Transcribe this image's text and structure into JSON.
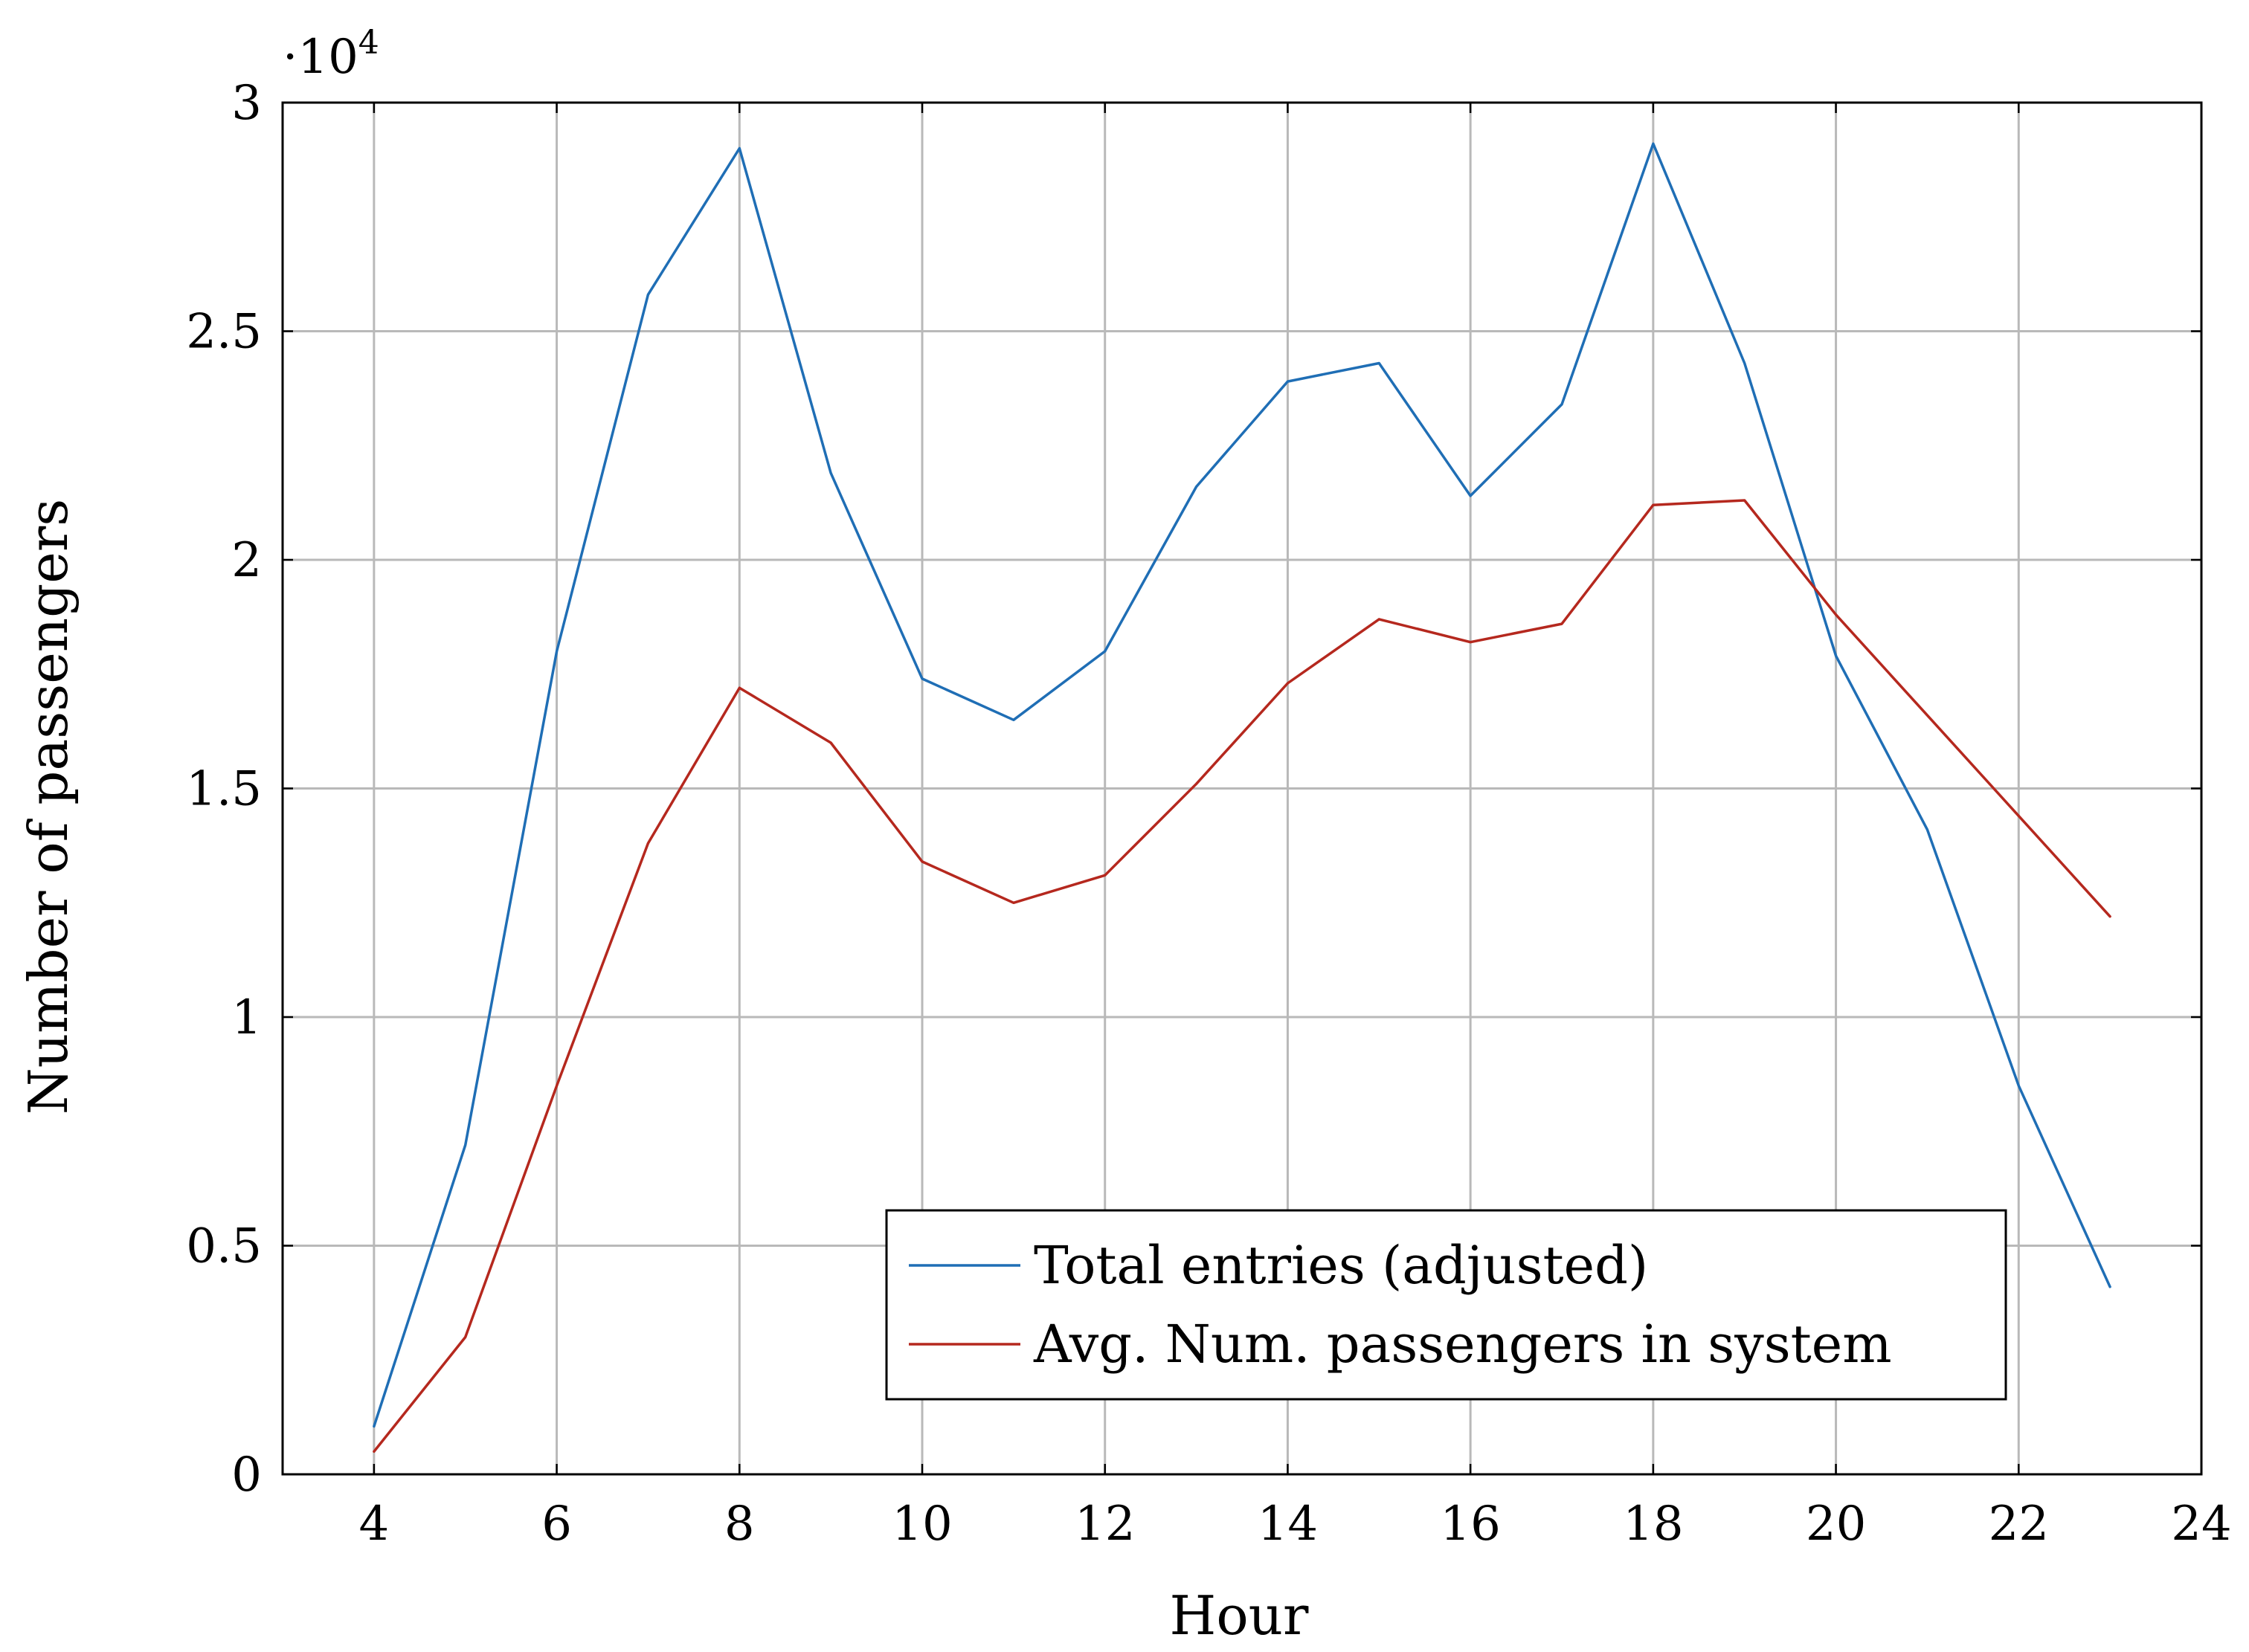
{
  "chart_data": {
    "type": "line",
    "title": "",
    "xlabel": "Hour",
    "ylabel": "Number of passengers",
    "y_multiplier_label": "·10",
    "y_multiplier_exponent": "4",
    "xlim": [
      3,
      24
    ],
    "ylim": [
      0,
      3
    ],
    "x_ticks": [
      4,
      6,
      8,
      10,
      12,
      14,
      16,
      18,
      20,
      22,
      24
    ],
    "y_ticks": [
      0,
      0.5,
      1,
      1.5,
      2,
      2.5,
      3
    ],
    "x_tick_labels": [
      "4",
      "6",
      "8",
      "10",
      "12",
      "14",
      "16",
      "18",
      "20",
      "22",
      "24"
    ],
    "y_tick_labels": [
      "0",
      "0.5",
      "1",
      "1.5",
      "2",
      "2.5",
      "3"
    ],
    "grid": true,
    "legend_position": "bottom-right",
    "x": [
      4,
      5,
      6,
      7,
      8,
      9,
      10,
      11,
      12,
      13,
      14,
      15,
      16,
      17,
      18,
      19,
      20,
      21,
      22,
      23
    ],
    "series": [
      {
        "name": "Total entries (adjusted)",
        "color": "#1f6eb5",
        "values": [
          0.105,
          0.72,
          1.8,
          2.58,
          2.9,
          2.19,
          1.74,
          1.65,
          1.8,
          2.16,
          2.39,
          2.43,
          2.14,
          2.34,
          2.91,
          2.43,
          1.79,
          1.41,
          0.85,
          0.41
        ]
      },
      {
        "name": "Avg. Num. passengers in system",
        "color": "#b5281e",
        "values": [
          0.05,
          0.3,
          0.85,
          1.38,
          1.72,
          1.6,
          1.34,
          1.25,
          1.31,
          1.51,
          1.73,
          1.87,
          1.82,
          1.86,
          2.12,
          2.13,
          1.88,
          1.66,
          1.44,
          1.22
        ]
      }
    ]
  }
}
